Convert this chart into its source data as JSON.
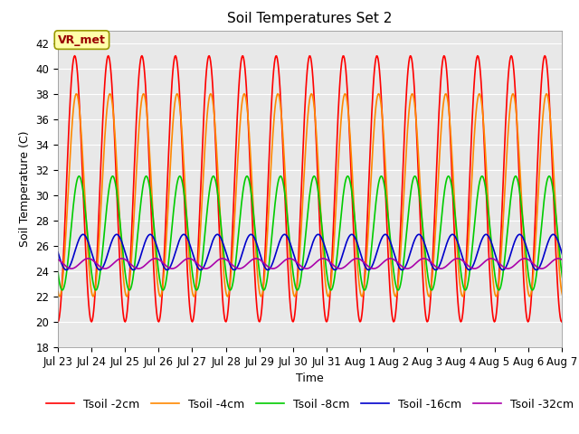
{
  "title": "Soil Temperatures Set 2",
  "xlabel": "Time",
  "ylabel": "Soil Temperature (C)",
  "ylim": [
    18,
    43
  ],
  "yticks": [
    18,
    20,
    22,
    24,
    26,
    28,
    30,
    32,
    34,
    36,
    38,
    40,
    42
  ],
  "annotation_text": "VR_met",
  "bg_color": "#e8e8e8",
  "fig_color": "#ffffff",
  "series": {
    "Tsoil -2cm": {
      "color": "#ff0000",
      "lw": 1.2,
      "amp": 10.5,
      "mean": 30.5,
      "phase": 0.25
    },
    "Tsoil -4cm": {
      "color": "#ff8800",
      "lw": 1.2,
      "amp": 8.0,
      "mean": 30.0,
      "phase": 0.3
    },
    "Tsoil -8cm": {
      "color": "#00cc00",
      "lw": 1.2,
      "amp": 4.5,
      "mean": 27.0,
      "phase": 0.38
    },
    "Tsoil -16cm": {
      "color": "#0000cc",
      "lw": 1.2,
      "amp": 1.4,
      "mean": 25.5,
      "phase": 0.5
    },
    "Tsoil -32cm": {
      "color": "#aa00aa",
      "lw": 1.2,
      "amp": 0.4,
      "mean": 24.6,
      "phase": 0.65
    }
  },
  "x_tick_labels": [
    "Jul 23",
    "Jul 24",
    "Jul 25",
    "Jul 26",
    "Jul 27",
    "Jul 28",
    "Jul 29",
    "Jul 30",
    "Jul 31",
    "Aug 1",
    "Aug 2",
    "Aug 3",
    "Aug 4",
    "Aug 5",
    "Aug 6",
    "Aug 7"
  ],
  "grid_color": "#ffffff",
  "title_fontsize": 11,
  "label_fontsize": 9,
  "tick_fontsize": 8.5,
  "legend_fontsize": 9
}
